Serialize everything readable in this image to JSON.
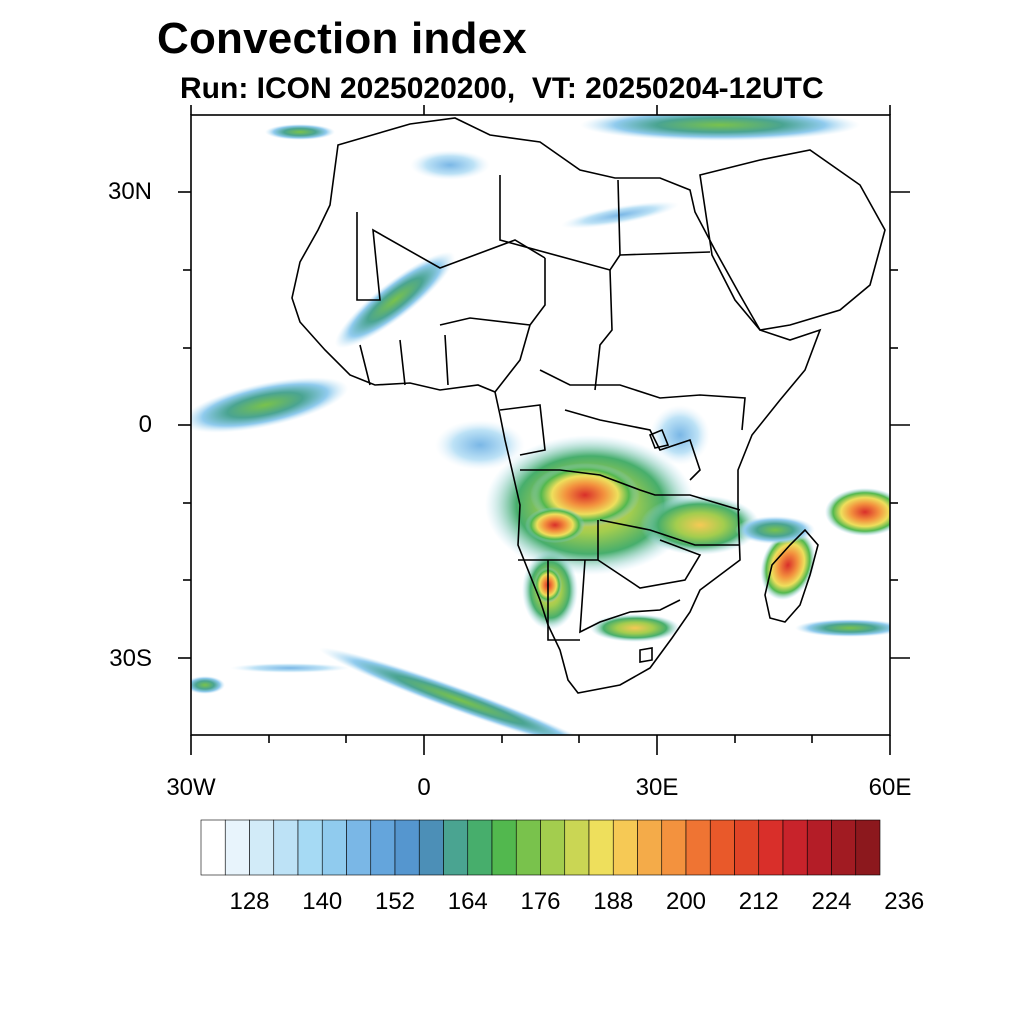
{
  "header": {
    "title": "Convection index",
    "subtitle": "Run: ICON 2025020200,  VT: 20250204-12UTC"
  },
  "map": {
    "region": "Africa",
    "lat_labels": [
      "30N",
      "0",
      "30S"
    ],
    "lon_labels": [
      "30W",
      "0",
      "30E",
      "60E"
    ],
    "lat_range": [
      -40,
      40
    ],
    "lon_range": [
      -30,
      60
    ]
  },
  "colorbar": {
    "labels": [
      "128",
      "140",
      "152",
      "164",
      "176",
      "188",
      "200",
      "212",
      "224",
      "236"
    ],
    "colors": [
      "#ffffff",
      "#e8f4fc",
      "#d2ebf8",
      "#bde2f6",
      "#a6daf4",
      "#90cbee",
      "#7ab7e6",
      "#64a5dc",
      "#5596cf",
      "#4c8fb7",
      "#4aa491",
      "#47ae6c",
      "#52b84e",
      "#79c24c",
      "#a3cd4e",
      "#cad654",
      "#eedf5c",
      "#f6c955",
      "#f4ab49",
      "#f3923e",
      "#ef7433",
      "#e9592a",
      "#e04427",
      "#d92f2a",
      "#c8232b",
      "#b41d27",
      "#a11b22",
      "#8c181d"
    ]
  }
}
